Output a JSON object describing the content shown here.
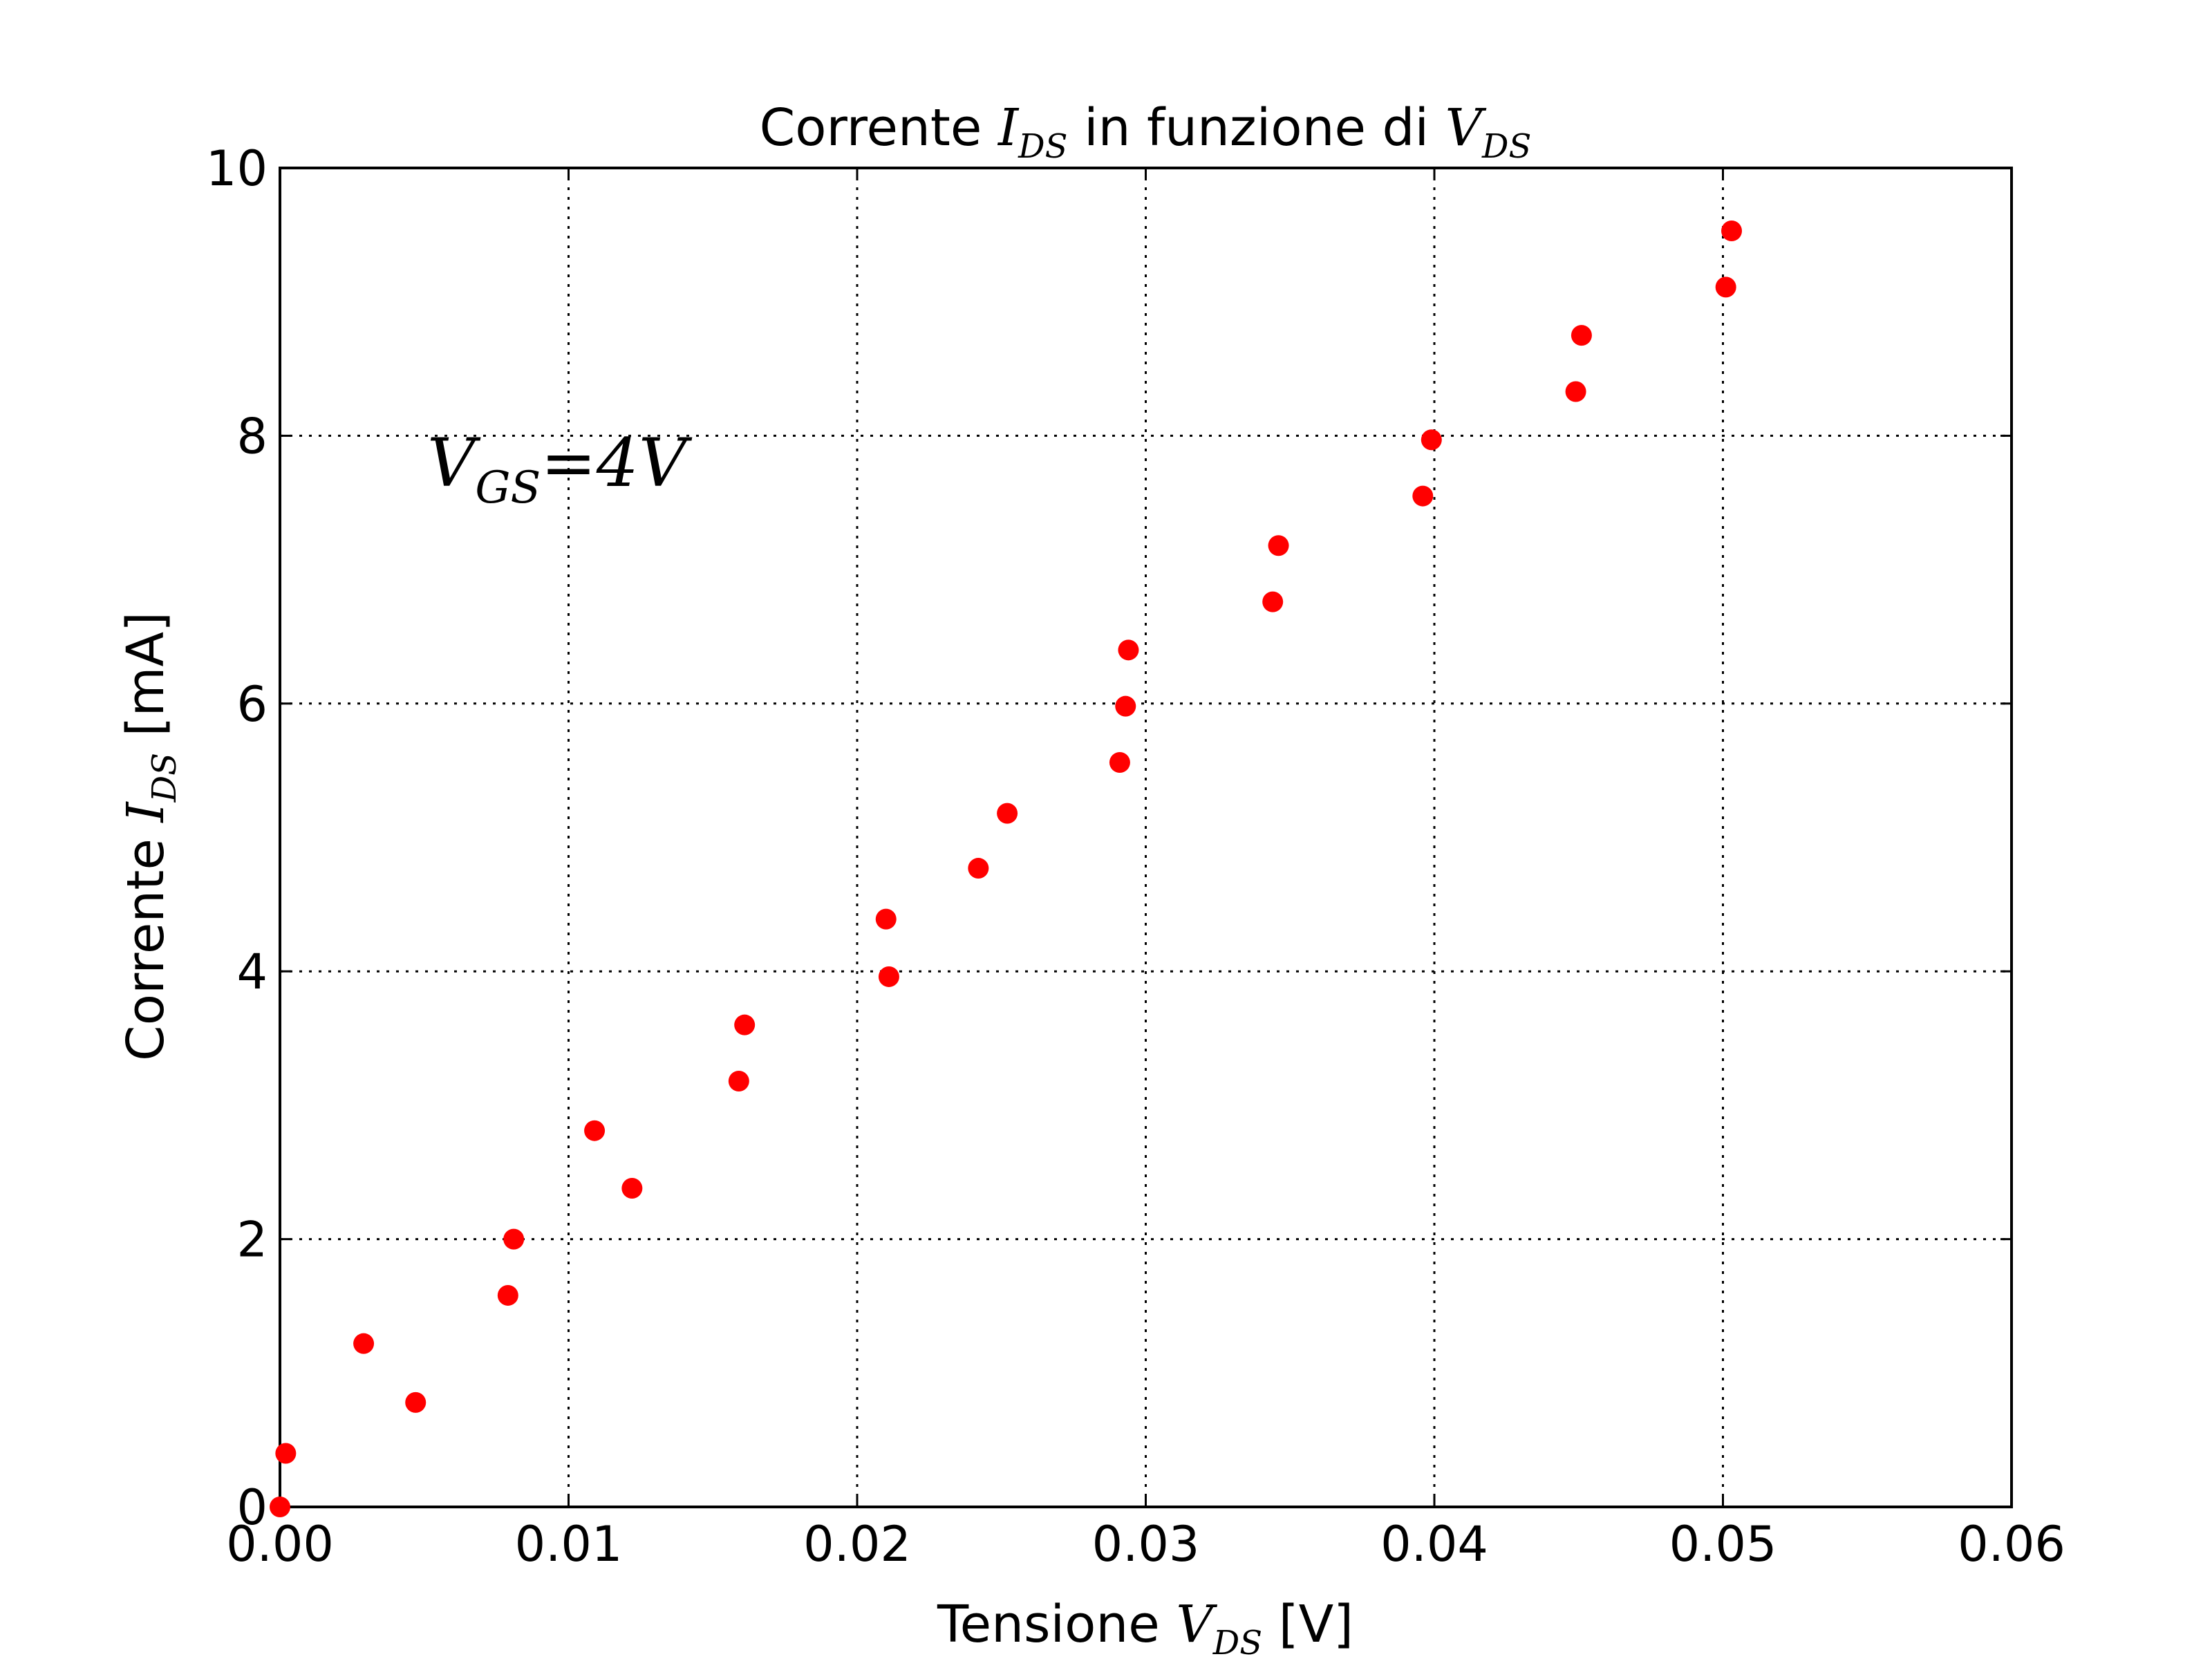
{
  "chart_data": {
    "type": "scatter",
    "title": {
      "prefix": "Corrente ",
      "var1": "I",
      "var1_sub": "DS",
      "middle": " in funzione di ",
      "var2": "V",
      "var2_sub": "DS"
    },
    "xlabel": {
      "prefix": "Tensione ",
      "var": "V",
      "sub": "DS",
      "suffix": " [V]"
    },
    "ylabel": {
      "prefix": "Corrente ",
      "var": "I",
      "sub": "DS",
      "suffix": " [mA]"
    },
    "annotation": {
      "var": "V",
      "sub": "GS",
      "rest": "=4V"
    },
    "xlim": [
      0,
      0.06
    ],
    "ylim": [
      0,
      10
    ],
    "x_ticks": [
      "0.00",
      "0.01",
      "0.02",
      "0.03",
      "0.04",
      "0.05",
      "0.06"
    ],
    "y_ticks": [
      "0",
      "2",
      "4",
      "6",
      "8",
      "10"
    ],
    "grid": true,
    "marker_color": "#ff0000",
    "points": [
      [
        0.0,
        0.0
      ],
      [
        0.0002,
        0.4
      ],
      [
        0.0029,
        1.22
      ],
      [
        0.0047,
        0.78
      ],
      [
        0.0079,
        1.58
      ],
      [
        0.0081,
        2.0
      ],
      [
        0.0109,
        2.81
      ],
      [
        0.0122,
        2.38
      ],
      [
        0.0159,
        3.18
      ],
      [
        0.0161,
        3.6
      ],
      [
        0.021,
        4.39
      ],
      [
        0.0211,
        3.96
      ],
      [
        0.0242,
        4.77
      ],
      [
        0.0252,
        5.18
      ],
      [
        0.0291,
        5.56
      ],
      [
        0.0293,
        5.98
      ],
      [
        0.0294,
        6.4
      ],
      [
        0.0344,
        6.76
      ],
      [
        0.0346,
        7.18
      ],
      [
        0.0396,
        7.55
      ],
      [
        0.0399,
        7.97
      ],
      [
        0.0449,
        8.33
      ],
      [
        0.0451,
        8.75
      ],
      [
        0.0501,
        9.11
      ],
      [
        0.0503,
        9.53
      ]
    ]
  }
}
